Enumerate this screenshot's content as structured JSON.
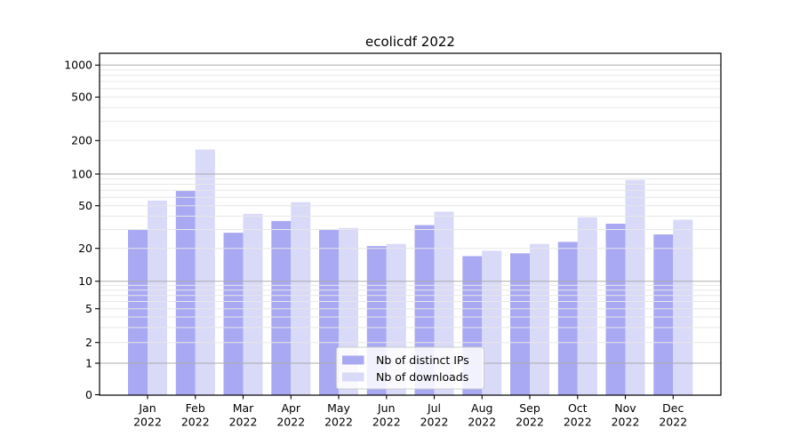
{
  "title": "ecolicdf 2022",
  "chart_data": {
    "type": "bar",
    "title": "ecolicdf 2022",
    "yscale": "symlog",
    "grid": true,
    "legend_position": "lower-center",
    "ylim": [
      0,
      1280
    ],
    "yticks": [
      0,
      1,
      2,
      5,
      10,
      20,
      50,
      100,
      200,
      500,
      1000
    ],
    "categories": [
      {
        "month": "Jan",
        "year": "2022"
      },
      {
        "month": "Feb",
        "year": "2022"
      },
      {
        "month": "Mar",
        "year": "2022"
      },
      {
        "month": "Apr",
        "year": "2022"
      },
      {
        "month": "May",
        "year": "2022"
      },
      {
        "month": "Jun",
        "year": "2022"
      },
      {
        "month": "Jul",
        "year": "2022"
      },
      {
        "month": "Aug",
        "year": "2022"
      },
      {
        "month": "Sep",
        "year": "2022"
      },
      {
        "month": "Oct",
        "year": "2022"
      },
      {
        "month": "Nov",
        "year": "2022"
      },
      {
        "month": "Dec",
        "year": "2022"
      }
    ],
    "series": [
      {
        "name": "Nb of distinct IPs",
        "color": "#a9a9f3",
        "values": [
          30,
          69,
          28,
          36,
          30,
          21,
          33,
          17,
          18,
          23,
          34,
          27
        ]
      },
      {
        "name": "Nb of downloads",
        "color": "#d9d9f8",
        "values": [
          56,
          166,
          42,
          54,
          31,
          22,
          44,
          19,
          22,
          39,
          88,
          37
        ]
      }
    ]
  },
  "colors": {
    "background": "#ffffff",
    "grid_major": "#ababab",
    "grid_minor": "#e8e8e8",
    "spine": "#000000",
    "text": "#000000",
    "legend_border": "#cccccc",
    "legend_bg": "#ffffff"
  }
}
